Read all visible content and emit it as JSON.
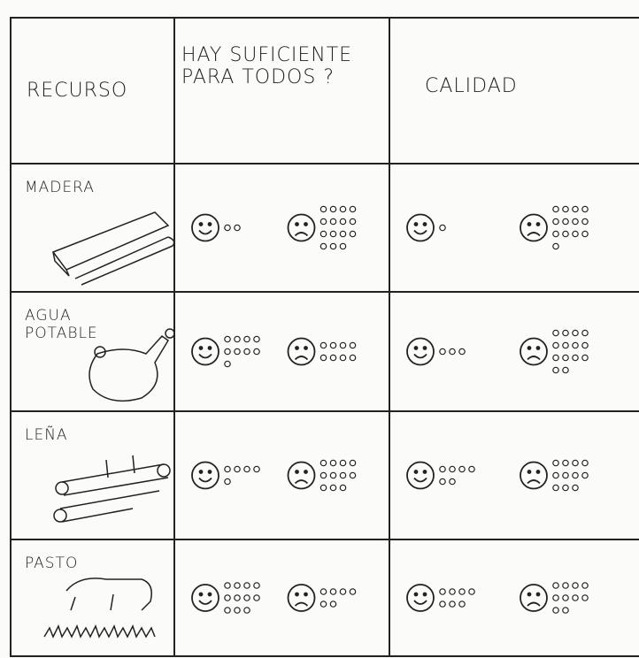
{
  "table": {
    "headers": [
      "RECURSO",
      "HAY SUFICIENTE PARA TODOS ?",
      "CALIDAD"
    ],
    "rows": [
      {
        "label": "MADERA",
        "enough": {
          "happy": 2,
          "sad": 15
        },
        "quality": {
          "happy": 1,
          "sad": 13
        }
      },
      {
        "label": "AGUA POTABLE",
        "enough": {
          "happy": 9,
          "sad": 8
        },
        "quality": {
          "happy": 3,
          "sad": 14
        }
      },
      {
        "label": "LEÑA",
        "enough": {
          "happy": 5,
          "sad": 11
        },
        "quality": {
          "happy": 6,
          "sad": 11
        }
      },
      {
        "label": "PASTO",
        "enough": {
          "happy": 11,
          "sad": 6
        },
        "quality": {
          "happy": 7,
          "sad": 10
        }
      }
    ]
  }
}
